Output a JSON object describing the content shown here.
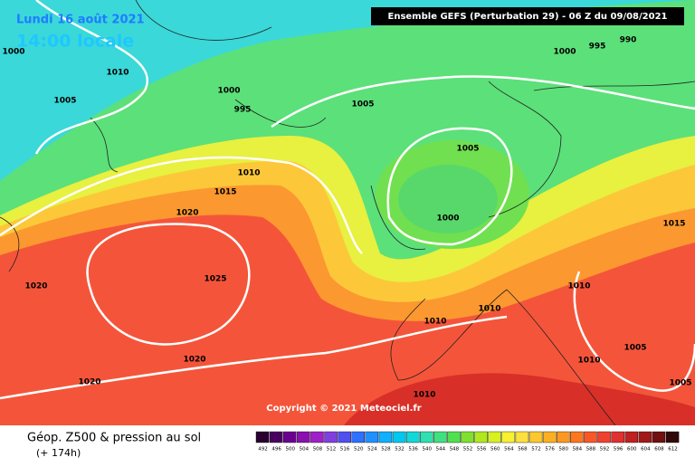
{
  "header": {
    "date": "Lundi 16 août 2021",
    "time": "14:00 locale",
    "run": "Ensemble GEFS  (Perturbation 29)  -  06 Z du 09/08/2021"
  },
  "copyright": "Copyright © 2021 Meteociel.fr",
  "footer": {
    "title": "Géop. Z500 & pression au sol",
    "lead": "(+ 174h)"
  },
  "isobar_labels": [
    1000,
    1010,
    1005,
    1000,
    995,
    1005,
    1005,
    1010,
    1015,
    1020,
    1000,
    1025,
    1020,
    1010,
    1010,
    1015,
    1010,
    1005,
    1020,
    1010,
    1020,
    1010,
    1005,
    1000,
    995,
    990
  ],
  "legend": {
    "values": [
      492,
      496,
      500,
      504,
      508,
      512,
      516,
      520,
      524,
      528,
      532,
      536,
      540,
      544,
      548,
      552,
      556,
      560,
      564,
      568,
      572,
      576,
      580,
      584,
      588,
      592,
      596,
      600,
      604,
      608,
      612
    ],
    "colors": [
      "#2a0030",
      "#4a0060",
      "#6a0090",
      "#8a10b0",
      "#a020c8",
      "#8040e0",
      "#5050f0",
      "#3070ff",
      "#2090ff",
      "#10b0ff",
      "#00c8f0",
      "#10d8d8",
      "#30e0b0",
      "#40e080",
      "#50e050",
      "#80e030",
      "#b0e820",
      "#d8f020",
      "#f8f030",
      "#fce040",
      "#fcc830",
      "#fcb020",
      "#fc9820",
      "#fc7820",
      "#f85828",
      "#f04030",
      "#e03030",
      "#c02020",
      "#a01818",
      "#701010",
      "#300808"
    ]
  }
}
